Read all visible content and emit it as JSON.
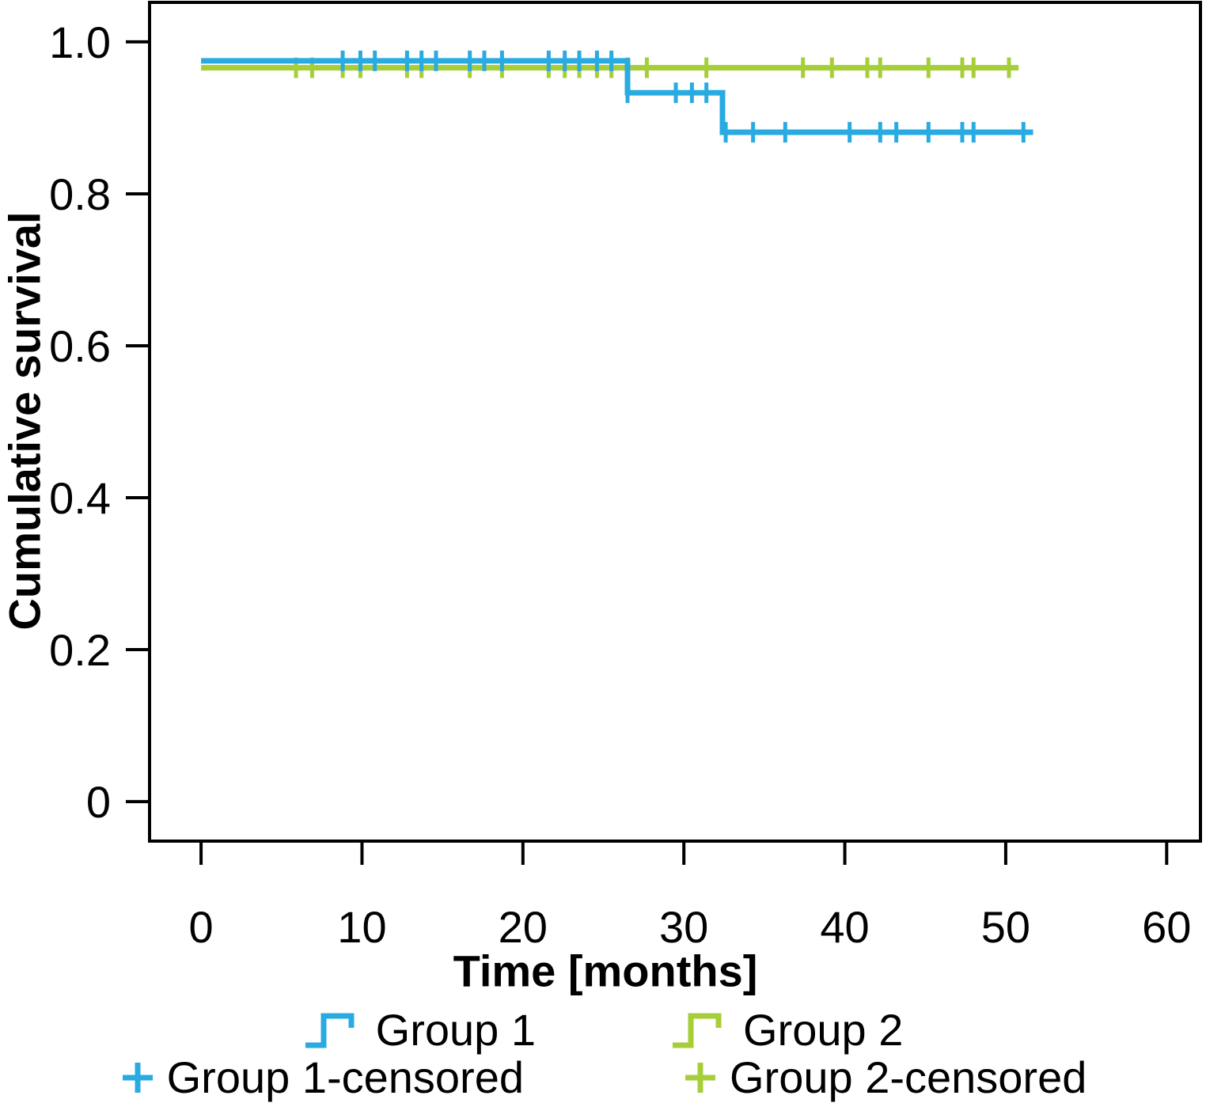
{
  "chart_data": {
    "type": "line",
    "subtype": "kaplan-meier-step",
    "title": "",
    "xlabel": "Time [months]",
    "ylabel": "Cumulative survival",
    "x_ticks": [
      0,
      10,
      20,
      30,
      40,
      50,
      60
    ],
    "y_ticks": [
      {
        "value": 0,
        "label": "0"
      },
      {
        "value": 0.2,
        "label": "0.2"
      },
      {
        "value": 0.4,
        "label": "0.4"
      },
      {
        "value": 0.6,
        "label": "0.6"
      },
      {
        "value": 0.8,
        "label": "0.8"
      },
      {
        "value": 1.0,
        "label": "1.0"
      }
    ],
    "xlim": [
      -3.2,
      62.1
    ],
    "ylim": [
      -0.052,
      1.052
    ],
    "grid": false,
    "axis_color": "#000000",
    "text_color": "#000000",
    "series": [
      {
        "name": "Group 1",
        "color": "#29abe2",
        "steps": [
          {
            "t": 0,
            "s": 0.975
          },
          {
            "t": 26.5,
            "s": 0.933
          },
          {
            "t": 32.4,
            "s": 0.881
          }
        ],
        "end_t": 51.7,
        "censored": [
          {
            "s": 0.975,
            "times": [
              8.8,
              9.9,
              10.8,
              12.8,
              13.7,
              14.6,
              16.7,
              17.6,
              18.7,
              21.6,
              22.6,
              23.5,
              24.6,
              25.5
            ]
          },
          {
            "s": 0.933,
            "times": [
              26.5,
              29.5,
              30.5,
              31.4
            ]
          },
          {
            "s": 0.881,
            "times": [
              32.6,
              34.3,
              36.3,
              40.3,
              42.2,
              43.2,
              45.2,
              47.3,
              48.0,
              51.1
            ]
          }
        ]
      },
      {
        "name": "Group 2",
        "color": "#a6ce39",
        "steps": [
          {
            "t": 0,
            "s": 0.966
          }
        ],
        "end_t": 50.8,
        "censored": [
          {
            "s": 0.966,
            "times": [
              5.9,
              6.9,
              8.8,
              9.9,
              12.8,
              13.7,
              16.7,
              18.7,
              21.6,
              22.6,
              23.5,
              24.6,
              25.5,
              26.5,
              27.7,
              31.4,
              37.4,
              39.2,
              41.4,
              42.2,
              45.2,
              47.3,
              48.0,
              50.2
            ]
          }
        ]
      }
    ],
    "legend": [
      {
        "label": "Group 1",
        "symbol": "step-line",
        "color": "#29abe2"
      },
      {
        "label": "Group 2",
        "symbol": "step-line",
        "color": "#a6ce39"
      },
      {
        "label": "Group 1-censored",
        "symbol": "plus",
        "color": "#29abe2"
      },
      {
        "label": "Group 2-censored",
        "symbol": "plus",
        "color": "#a6ce39"
      }
    ],
    "legend_position": "bottom"
  }
}
